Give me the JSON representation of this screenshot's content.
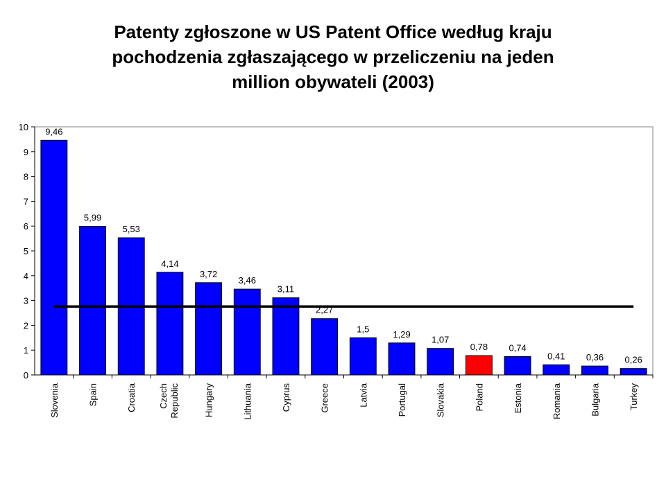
{
  "chart_data": {
    "type": "bar",
    "title": [
      "Patenty zgłoszone w US Patent Office według kraju",
      "pochodzenia zgłaszającego w przeliczeniu na jeden",
      "million obywateli (2003)"
    ],
    "categories": [
      "Slovenia",
      "Spain",
      "Croatia",
      "Czech Republic",
      "Hungary",
      "Lithuania",
      "Cyprus",
      "Greece",
      "Latvia",
      "Portugal",
      "Slovakia",
      "Poland",
      "Estonia",
      "Romania",
      "Bulgaria",
      "Turkey"
    ],
    "values": [
      9.46,
      5.99,
      5.53,
      4.14,
      3.72,
      3.46,
      3.11,
      2.27,
      1.5,
      1.29,
      1.07,
      0.78,
      0.74,
      0.41,
      0.36,
      0.26
    ],
    "data_labels": [
      "9,46",
      "5,99",
      "5,53",
      "4,14",
      "3,72",
      "3,46",
      "3,11",
      "2,27",
      "1,5",
      "1,29",
      "1,07",
      "0,78",
      "0,74",
      "0,41",
      "0,36",
      "0,26"
    ],
    "highlight": {
      "category": "Poland",
      "color": "#ff0000"
    },
    "bar_color": "#0000ff",
    "reference_line": {
      "value": 2.76,
      "color": "#000000"
    },
    "xlabel": "",
    "ylabel": "",
    "ylim": [
      0,
      10
    ],
    "yticks": [
      0,
      1,
      2,
      3,
      4,
      5,
      6,
      7,
      8,
      9,
      10
    ],
    "grid": false,
    "legend": "none"
  }
}
